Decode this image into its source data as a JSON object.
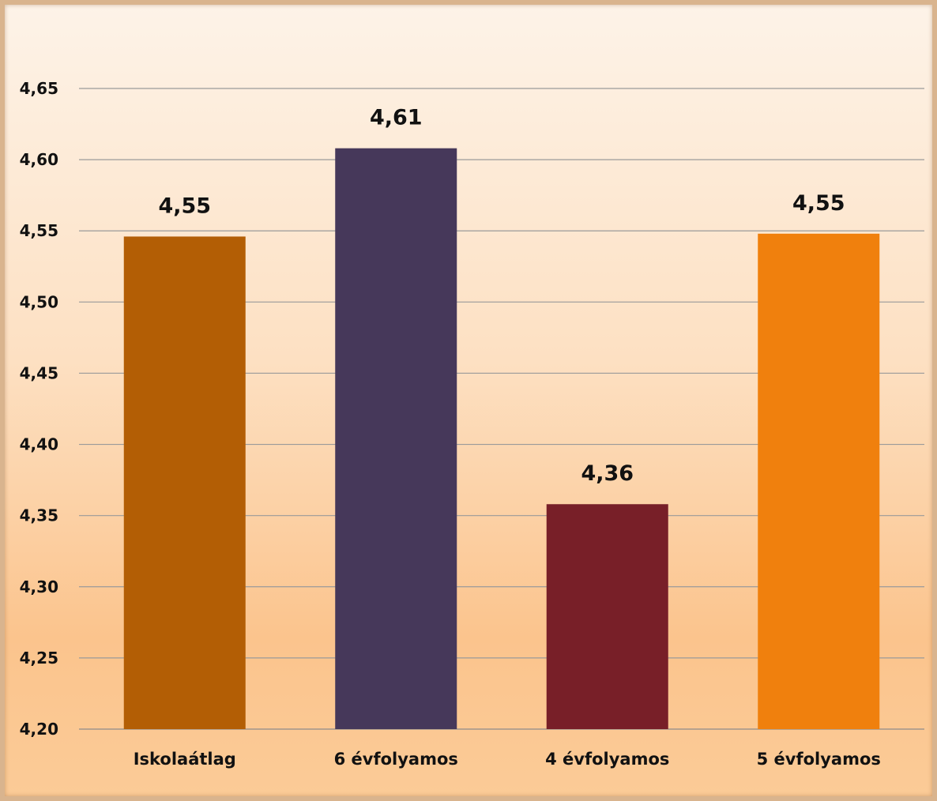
{
  "chart_data": {
    "type": "bar",
    "categories": [
      "Iskolaátlag",
      "6 évfolyamos",
      "4 évfolyamos",
      "5 évfolyamos"
    ],
    "values": [
      4.546,
      4.608,
      4.358,
      4.548
    ],
    "value_labels": [
      "4,55",
      "4,61",
      "4,36",
      "4,55"
    ],
    "colors": [
      "#b35e05",
      "#46385a",
      "#781f28",
      "#f0800d"
    ],
    "ylim": [
      4.2,
      4.65
    ],
    "yticks": [
      "4,20",
      "4,25",
      "4,30",
      "4,35",
      "4,40",
      "4,45",
      "4,50",
      "4,55",
      "4,60",
      "4,65"
    ],
    "grid": true,
    "legend": "none",
    "title": "",
    "xlabel": "",
    "ylabel": ""
  }
}
